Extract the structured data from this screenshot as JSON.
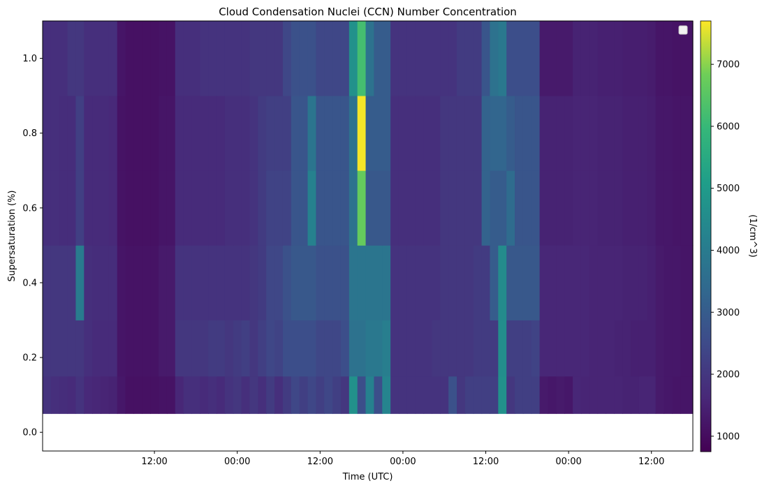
{
  "chart_data": {
    "type": "heatmap",
    "title": "Cloud Condensation Nuclei (CCN) Number Concentration",
    "xlabel": "Time (UTC)",
    "ylabel": "Supersaturation (%)",
    "colorbar_label": "(1/cm^3)",
    "colormap": "viridis",
    "vmin": 750,
    "vmax": 7700,
    "xlim_hours": [
      -1.5,
      77.0
    ],
    "ylim": [
      -0.05,
      1.1
    ],
    "x_ticks": [
      {
        "hour": 12,
        "label": "12:00"
      },
      {
        "hour": 22,
        "label": "00:00"
      },
      {
        "hour": 32,
        "label": "12:00"
      },
      {
        "hour": 42,
        "label": "00:00"
      },
      {
        "hour": 52,
        "label": "12:00"
      },
      {
        "hour": 62,
        "label": "00:00"
      },
      {
        "hour": 72,
        "label": "12:00"
      }
    ],
    "y_ticks": [
      {
        "value": 0.0,
        "label": "0.0"
      },
      {
        "value": 0.2,
        "label": "0.2"
      },
      {
        "value": 0.4,
        "label": "0.4"
      },
      {
        "value": 0.6,
        "label": "0.6"
      },
      {
        "value": 0.8,
        "label": "0.8"
      },
      {
        "value": 1.0,
        "label": "1.0"
      }
    ],
    "colorbar_ticks": [
      {
        "value": 1000,
        "label": "1000"
      },
      {
        "value": 2000,
        "label": "2000"
      },
      {
        "value": 3000,
        "label": "3000"
      },
      {
        "value": 4000,
        "label": "4000"
      },
      {
        "value": 5000,
        "label": "5000"
      },
      {
        "value": 6000,
        "label": "6000"
      },
      {
        "value": 7000,
        "label": "7000"
      }
    ],
    "legend": "top-right, empty",
    "time_edges_hours": [
      -1.5,
      -0.5,
      0.5,
      1.5,
      2.5,
      3.5,
      4.5,
      5.5,
      6.5,
      7.5,
      8.5,
      9.5,
      10.5,
      11.5,
      12.5,
      13.5,
      14.5,
      15.5,
      16.5,
      17.5,
      18.5,
      19.5,
      20.5,
      21.5,
      22.5,
      23.5,
      24.5,
      25.5,
      26.5,
      27.5,
      28.5,
      29.5,
      30.5,
      31.5,
      32.5,
      33.5,
      34.5,
      35.5,
      36.5,
      37.5,
      38.5,
      39.5,
      40.5,
      41.5,
      42.5,
      43.5,
      44.5,
      45.5,
      46.5,
      47.5,
      48.5,
      49.5,
      50.5,
      51.5,
      52.5,
      53.5,
      54.5,
      55.5,
      56.5,
      57.5,
      58.5,
      59.5,
      60.5,
      61.5,
      62.5,
      63.5,
      64.5,
      65.5,
      66.5,
      67.5,
      68.5,
      69.5,
      70.5,
      71.5,
      72.5,
      73.5,
      74.5,
      75.5,
      77.0
    ],
    "supersaturation_bins": [
      {
        "label": "0.1",
        "low": 0.05,
        "high": 0.15
      },
      {
        "label": "0.2",
        "low": 0.15,
        "high": 0.3
      },
      {
        "label": "0.4",
        "low": 0.3,
        "high": 0.5
      },
      {
        "label": "0.6",
        "low": 0.5,
        "high": 0.7
      },
      {
        "label": "0.8",
        "low": 0.7,
        "high": 0.9
      },
      {
        "label": "1.0",
        "low": 0.9,
        "high": 1.1
      }
    ],
    "values": [
      [
        1900,
        1800,
        1750,
        1700,
        1900,
        1650,
        1600,
        1550,
        1500,
        1250,
        1100,
        1100,
        1100,
        1100,
        1150,
        1150,
        1600,
        1800,
        1800,
        1700,
        1800,
        1700,
        1900,
        2000,
        1800,
        2000,
        1800,
        2100,
        1800,
        2100,
        2400,
        2200,
        2400,
        2200,
        2400,
        2200,
        2000,
        4700,
        2600,
        4200,
        2600,
        4300,
        1900,
        1900,
        1900,
        1900,
        1900,
        1900,
        1900,
        2700,
        2000,
        2200,
        2200,
        2200,
        2200,
        4700,
        2000,
        2200,
        2200,
        2200,
        1300,
        1250,
        1300,
        1250,
        1600,
        1550,
        1550,
        1550,
        1550,
        1550,
        1500,
        1500,
        1550,
        1550,
        1300,
        1250,
        1200,
        1200
      ],
      [
        2000,
        2000,
        2000,
        2000,
        2000,
        1800,
        1700,
        1700,
        1700,
        1200,
        1150,
        1150,
        1150,
        1150,
        1300,
        1300,
        2000,
        2000,
        2000,
        2000,
        2100,
        2100,
        2000,
        2100,
        2200,
        2000,
        2200,
        2400,
        2300,
        2600,
        2600,
        2600,
        2600,
        2400,
        2400,
        2400,
        2600,
        3700,
        3700,
        3900,
        3900,
        4100,
        1900,
        1900,
        1900,
        1900,
        1900,
        2000,
        2000,
        2000,
        2000,
        2000,
        2100,
        2100,
        2100,
        4600,
        2200,
        2200,
        2200,
        2300,
        1600,
        1600,
        1600,
        1600,
        1600,
        1600,
        1550,
        1550,
        1550,
        1500,
        1500,
        1450,
        1450,
        1450,
        1300,
        1250,
        1250,
        1200
      ],
      [
        2000,
        2000,
        2000,
        2000,
        4000,
        1800,
        1750,
        1750,
        1750,
        1200,
        1150,
        1150,
        1150,
        1150,
        1300,
        1300,
        1900,
        1900,
        1900,
        1900,
        1900,
        1900,
        1900,
        1900,
        1900,
        2000,
        2100,
        2400,
        2400,
        2700,
        2900,
        2900,
        2900,
        2700,
        2700,
        2700,
        2700,
        3800,
        3800,
        3800,
        3800,
        3800,
        1900,
        1900,
        1900,
        1900,
        1900,
        1900,
        2000,
        2000,
        2000,
        2000,
        2100,
        2100,
        3000,
        4500,
        2900,
        2900,
        2900,
        2900,
        1600,
        1600,
        1600,
        1600,
        1600,
        1600,
        1550,
        1550,
        1550,
        1550,
        1500,
        1500,
        1500,
        1450,
        1300,
        1250,
        1250,
        1200
      ],
      [
        1800,
        1800,
        1750,
        1750,
        2200,
        1700,
        1700,
        1700,
        1650,
        1150,
        1100,
        1100,
        1100,
        1100,
        1200,
        1200,
        1700,
        1700,
        1700,
        1700,
        1700,
        1700,
        1800,
        1800,
        1800,
        1900,
        2100,
        2300,
        2300,
        2300,
        2800,
        2800,
        4200,
        2800,
        2800,
        2800,
        2800,
        3700,
        6700,
        2900,
        2900,
        2900,
        1800,
        1800,
        1800,
        1800,
        1800,
        1800,
        2000,
        2000,
        2000,
        2000,
        2000,
        3200,
        3000,
        3000,
        3500,
        2800,
        2800,
        2800,
        1500,
        1500,
        1500,
        1500,
        1550,
        1550,
        1550,
        1500,
        1500,
        1500,
        1450,
        1450,
        1450,
        1400,
        1250,
        1250,
        1200,
        1200
      ],
      [
        1800,
        1800,
        1750,
        1750,
        2200,
        1700,
        1700,
        1700,
        1650,
        1150,
        1100,
        1100,
        1100,
        1100,
        1200,
        1200,
        1700,
        1700,
        1700,
        1700,
        1700,
        1700,
        1800,
        1800,
        1800,
        1900,
        2100,
        2200,
        2200,
        2200,
        2800,
        2800,
        3800,
        2800,
        2800,
        2800,
        2800,
        3700,
        7650,
        3000,
        3000,
        3000,
        1800,
        1800,
        1800,
        1800,
        1800,
        1800,
        2000,
        2000,
        2000,
        2000,
        2000,
        3200,
        3300,
        3300,
        3000,
        2800,
        2800,
        2800,
        1500,
        1500,
        1500,
        1500,
        1550,
        1550,
        1550,
        1500,
        1500,
        1500,
        1450,
        1450,
        1450,
        1400,
        1250,
        1250,
        1200,
        1200
      ],
      [
        1800,
        1800,
        1800,
        2000,
        2000,
        1800,
        1800,
        1800,
        1800,
        1200,
        1100,
        1100,
        1100,
        1100,
        1150,
        1150,
        1800,
        1800,
        1800,
        1900,
        1900,
        1900,
        1900,
        1900,
        1900,
        2000,
        2000,
        2000,
        2000,
        2400,
        2700,
        2700,
        2700,
        2400,
        2400,
        2400,
        2400,
        4700,
        6200,
        3700,
        3000,
        3000,
        1900,
        1900,
        1900,
        1900,
        1900,
        1900,
        1900,
        1900,
        2100,
        2100,
        2100,
        2800,
        3700,
        3900,
        2600,
        2600,
        2600,
        2600,
        1300,
        1300,
        1300,
        1300,
        1500,
        1500,
        1500,
        1450,
        1450,
        1450,
        1400,
        1400,
        1400,
        1350,
        1200,
        1200,
        1150,
        1150
      ]
    ]
  }
}
